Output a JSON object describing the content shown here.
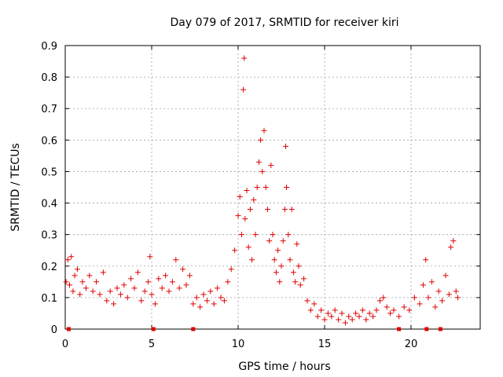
{
  "chart_data": {
    "type": "scatter",
    "title": "Day 079 of 2017, SRMTID for receiver kiri",
    "xlabel": "GPS time / hours",
    "ylabel": "SRMTID / TECUs",
    "xlim": [
      0,
      24
    ],
    "ylim": [
      0,
      0.9
    ],
    "xticks": [
      0,
      5,
      10,
      15,
      20
    ],
    "xtick_labels": [
      "0",
      "5",
      "10",
      "15",
      "20"
    ],
    "yticks": [
      0,
      0.1,
      0.2,
      0.3,
      0.4,
      0.5,
      0.6,
      0.7,
      0.8,
      0.9
    ],
    "ytick_labels": [
      "0",
      "0.1",
      "0.2",
      "0.3",
      "0.4",
      "0.5",
      "0.6",
      "0.7",
      "0.8",
      "0.9"
    ],
    "grid": true,
    "marker": "+",
    "color": "#e00000",
    "series": [
      {
        "name": "SRMTID",
        "points": [
          [
            0.05,
            0.15
          ],
          [
            0.15,
            0.22
          ],
          [
            0.25,
            0.14
          ],
          [
            0.35,
            0.23
          ],
          [
            0.45,
            0.12
          ],
          [
            0.55,
            0.17
          ],
          [
            0.7,
            0.19
          ],
          [
            0.85,
            0.11
          ],
          [
            1.0,
            0.15
          ],
          [
            1.2,
            0.13
          ],
          [
            1.4,
            0.17
          ],
          [
            1.6,
            0.12
          ],
          [
            1.8,
            0.15
          ],
          [
            2.0,
            0.11
          ],
          [
            2.2,
            0.18
          ],
          [
            2.4,
            0.09
          ],
          [
            2.6,
            0.12
          ],
          [
            2.8,
            0.08
          ],
          [
            3.0,
            0.13
          ],
          [
            3.2,
            0.11
          ],
          [
            3.4,
            0.14
          ],
          [
            3.6,
            0.1
          ],
          [
            3.8,
            0.16
          ],
          [
            4.0,
            0.13
          ],
          [
            4.2,
            0.18
          ],
          [
            4.4,
            0.09
          ],
          [
            4.6,
            0.12
          ],
          [
            4.8,
            0.15
          ],
          [
            4.9,
            0.23
          ],
          [
            5.0,
            0.11
          ],
          [
            5.2,
            0.08
          ],
          [
            5.4,
            0.16
          ],
          [
            5.6,
            0.13
          ],
          [
            5.8,
            0.17
          ],
          [
            6.0,
            0.12
          ],
          [
            6.2,
            0.15
          ],
          [
            6.4,
            0.22
          ],
          [
            6.6,
            0.13
          ],
          [
            6.8,
            0.19
          ],
          [
            7.0,
            0.14
          ],
          [
            7.2,
            0.17
          ],
          [
            7.4,
            0.08
          ],
          [
            7.6,
            0.1
          ],
          [
            7.8,
            0.07
          ],
          [
            8.0,
            0.11
          ],
          [
            8.2,
            0.09
          ],
          [
            8.4,
            0.12
          ],
          [
            8.6,
            0.08
          ],
          [
            8.8,
            0.13
          ],
          [
            9.0,
            0.1
          ],
          [
            9.2,
            0.09
          ],
          [
            9.4,
            0.15
          ],
          [
            9.6,
            0.19
          ],
          [
            9.8,
            0.25
          ],
          [
            10.0,
            0.36
          ],
          [
            10.1,
            0.42
          ],
          [
            10.2,
            0.3
          ],
          [
            10.3,
            0.76
          ],
          [
            10.35,
            0.86
          ],
          [
            10.4,
            0.35
          ],
          [
            10.5,
            0.44
          ],
          [
            10.6,
            0.26
          ],
          [
            10.7,
            0.38
          ],
          [
            10.8,
            0.22
          ],
          [
            10.9,
            0.41
          ],
          [
            11.0,
            0.3
          ],
          [
            11.1,
            0.45
          ],
          [
            11.2,
            0.53
          ],
          [
            11.3,
            0.6
          ],
          [
            11.4,
            0.5
          ],
          [
            11.5,
            0.63
          ],
          [
            11.6,
            0.45
          ],
          [
            11.7,
            0.38
          ],
          [
            11.8,
            0.28
          ],
          [
            11.9,
            0.52
          ],
          [
            12.0,
            0.3
          ],
          [
            12.1,
            0.22
          ],
          [
            12.2,
            0.18
          ],
          [
            12.3,
            0.25
          ],
          [
            12.4,
            0.15
          ],
          [
            12.5,
            0.2
          ],
          [
            12.6,
            0.28
          ],
          [
            12.7,
            0.38
          ],
          [
            12.75,
            0.58
          ],
          [
            12.8,
            0.45
          ],
          [
            12.9,
            0.3
          ],
          [
            13.0,
            0.22
          ],
          [
            13.1,
            0.38
          ],
          [
            13.2,
            0.18
          ],
          [
            13.3,
            0.15
          ],
          [
            13.4,
            0.27
          ],
          [
            13.5,
            0.2
          ],
          [
            13.6,
            0.14
          ],
          [
            13.8,
            0.16
          ],
          [
            14.0,
            0.09
          ],
          [
            14.2,
            0.06
          ],
          [
            14.4,
            0.08
          ],
          [
            14.6,
            0.04
          ],
          [
            14.8,
            0.06
          ],
          [
            15.0,
            0.03
          ],
          [
            15.2,
            0.05
          ],
          [
            15.4,
            0.04
          ],
          [
            15.6,
            0.06
          ],
          [
            15.8,
            0.03
          ],
          [
            16.0,
            0.05
          ],
          [
            16.2,
            0.02
          ],
          [
            16.4,
            0.04
          ],
          [
            16.6,
            0.03
          ],
          [
            16.8,
            0.05
          ],
          [
            17.0,
            0.04
          ],
          [
            17.2,
            0.06
          ],
          [
            17.4,
            0.03
          ],
          [
            17.6,
            0.05
          ],
          [
            17.8,
            0.04
          ],
          [
            18.0,
            0.06
          ],
          [
            18.2,
            0.09
          ],
          [
            18.4,
            0.1
          ],
          [
            18.6,
            0.07
          ],
          [
            18.8,
            0.05
          ],
          [
            19.0,
            0.06
          ],
          [
            19.3,
            0.04
          ],
          [
            19.6,
            0.07
          ],
          [
            19.9,
            0.06
          ],
          [
            20.2,
            0.1
          ],
          [
            20.5,
            0.08
          ],
          [
            20.7,
            0.14
          ],
          [
            20.85,
            0.22
          ],
          [
            21.0,
            0.1
          ],
          [
            21.2,
            0.15
          ],
          [
            21.4,
            0.07
          ],
          [
            21.6,
            0.12
          ],
          [
            21.8,
            0.09
          ],
          [
            22.0,
            0.17
          ],
          [
            22.2,
            0.11
          ],
          [
            22.3,
            0.26
          ],
          [
            22.45,
            0.28
          ],
          [
            22.6,
            0.12
          ],
          [
            22.7,
            0.1
          ]
        ]
      }
    ],
    "baseline_markers": [
      0.2,
      5.1,
      7.4,
      19.3,
      20.9,
      21.7
    ]
  }
}
